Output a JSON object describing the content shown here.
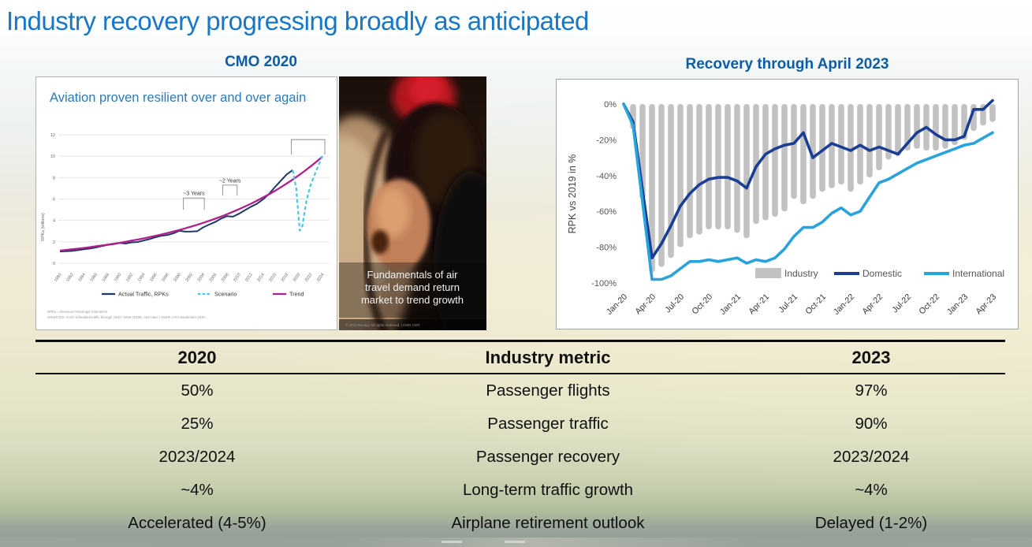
{
  "slide": {
    "title": "Industry recovery progressing broadly as anticipated"
  },
  "left_section": {
    "heading": "CMO 2020",
    "chart_title": "Aviation proven resilient over and over again",
    "footnote_line1": "RPKs = Revenue Passenger Kilometers",
    "footnote_line2": "SOURCES: ICAO scheduled traffic through 1993 / 2006-2019E, HDI rates / 2020F, IATA September 2020"
  },
  "photo": {
    "caption_lines": [
      "Fundamentals of air",
      "travel demand return",
      "market to trend growth"
    ],
    "credit": "© 2023 Boeing. All rights reserved.  |  CMO CMT"
  },
  "right_section": {
    "heading": "Recovery through April 2023"
  },
  "table": {
    "headers": [
      "2020",
      "Industry metric",
      "2023"
    ],
    "rows": [
      [
        "50%",
        "Passenger flights",
        "97%"
      ],
      [
        "25%",
        "Passenger traffic",
        "90%"
      ],
      [
        "2023/2024",
        "Passenger recovery",
        "2023/2024"
      ],
      [
        "~4%",
        "Long-term traffic growth",
        "~4%"
      ],
      [
        "Accelerated (4-5%)",
        "Airplane retirement outlook",
        "Delayed (1-2%)"
      ]
    ]
  },
  "colors": {
    "title_blue": "#1877C6",
    "heading_blue": "#0C5DA5",
    "chart_title_blue": "#2B7AB8",
    "actual_traffic": "#1F3864",
    "scenario": "#45C6E8",
    "trend": "#B01F8E",
    "industry_bar": "#C2C2C2",
    "domestic": "#1A3E96",
    "international": "#29A3DC"
  },
  "chart_data": [
    {
      "type": "line",
      "title": "Aviation proven resilient over and over again",
      "xlabel": "",
      "ylabel": "RPKs (trillions)",
      "ylim": [
        0,
        12
      ],
      "yticks": [
        0,
        2,
        4,
        6,
        8,
        10,
        12
      ],
      "xticks": [
        1980,
        1982,
        1984,
        1986,
        1988,
        1990,
        1992,
        1994,
        1996,
        1998,
        2000,
        2002,
        2004,
        2006,
        2008,
        2010,
        2012,
        2014,
        2016,
        2018,
        2020,
        2022,
        2024
      ],
      "grid": true,
      "legend_position": "bottom",
      "series": [
        {
          "name": "Actual Traffic, RPKs",
          "style": "solid",
          "color_key": "actual_traffic",
          "x_start": 1980,
          "x_step": 1,
          "values": [
            1.1,
            1.12,
            1.15,
            1.22,
            1.3,
            1.37,
            1.47,
            1.6,
            1.71,
            1.78,
            1.89,
            1.84,
            1.95,
            1.98,
            2.12,
            2.25,
            2.43,
            2.57,
            2.63,
            2.79,
            3.03,
            2.95,
            2.96,
            2.99,
            3.35,
            3.61,
            3.85,
            4.17,
            4.4,
            4.35,
            4.62,
            4.95,
            5.28,
            5.55,
            5.95,
            6.45,
            7.1,
            7.7,
            8.3,
            8.7
          ]
        },
        {
          "name": "Trend",
          "style": "solid",
          "color_key": "trend",
          "x_start": 1980,
          "x_step": 1,
          "values": [
            1.18,
            1.24,
            1.3,
            1.36,
            1.43,
            1.5,
            1.58,
            1.66,
            1.74,
            1.82,
            1.91,
            2.01,
            2.11,
            2.21,
            2.32,
            2.44,
            2.56,
            2.69,
            2.82,
            2.96,
            3.11,
            3.26,
            3.42,
            3.59,
            3.77,
            3.96,
            4.16,
            4.36,
            4.58,
            4.81,
            5.05,
            5.3,
            5.56,
            5.84,
            6.13,
            6.43,
            6.75,
            7.09,
            7.44,
            7.81,
            8.2,
            8.61,
            9.04,
            9.49,
            9.96
          ]
        },
        {
          "name": "Scenario",
          "style": "dashed",
          "color_key": "scenario",
          "x": [
            2019,
            2019.6,
            2020.2,
            2020.6,
            2021.3,
            2022,
            2023,
            2024
          ],
          "values": [
            8.7,
            7.0,
            3.05,
            3.4,
            5.8,
            7.3,
            8.7,
            10.05
          ]
        }
      ],
      "annotations": [
        {
          "label": "~3 Years",
          "x1": 2000.7,
          "x2": 2004.2,
          "y": 6.1,
          "leg": 1.1
        },
        {
          "label": "~2 Years",
          "x1": 2007.3,
          "x2": 2009.7,
          "y": 7.3,
          "leg": 1.0
        },
        {
          "label": "",
          "x1": 2018.8,
          "x2": 2024.4,
          "y": 11.55,
          "leg": 1.4
        }
      ],
      "legend": [
        "Actual Traffic, RPKs",
        "Scenario",
        "Trend"
      ]
    },
    {
      "type": "bar",
      "title": "Recovery through April 2023",
      "xlabel": "",
      "ylabel": "RPK vs 2019 in %",
      "ylim": [
        -100,
        0
      ],
      "yticks": [
        {
          "v": 0,
          "label": "0%"
        },
        {
          "v": -20,
          "label": "-20%"
        },
        {
          "v": -40,
          "label": "-40%"
        },
        {
          "v": -60,
          "label": "-60%"
        },
        {
          "v": -80,
          "label": "-80%"
        },
        {
          "v": -100,
          "label": "-100%"
        }
      ],
      "grid": false,
      "legend_position": "inside-bottom-right",
      "categories": [
        "Jan-20",
        "Feb-20",
        "Mar-20",
        "Apr-20",
        "May-20",
        "Jun-20",
        "Jul-20",
        "Aug-20",
        "Sep-20",
        "Oct-20",
        "Nov-20",
        "Dec-20",
        "Jan-21",
        "Feb-21",
        "Mar-21",
        "Apr-21",
        "May-21",
        "Jun-21",
        "Jul-21",
        "Aug-21",
        "Sep-21",
        "Oct-21",
        "Nov-21",
        "Dec-21",
        "Jan-22",
        "Feb-22",
        "Mar-22",
        "Apr-22",
        "May-22",
        "Jun-22",
        "Jul-22",
        "Aug-22",
        "Sep-22",
        "Oct-22",
        "Nov-22",
        "Dec-22",
        "Jan-23",
        "Feb-23",
        "Mar-23",
        "Apr-23"
      ],
      "xtick_every": 3,
      "bar_series": {
        "name": "Industry",
        "color_key": "industry_bar",
        "values": [
          0,
          -14,
          -53,
          -94,
          -91,
          -86,
          -80,
          -75,
          -73,
          -70,
          -70,
          -70,
          -72,
          -75,
          -67,
          -65,
          -63,
          -60,
          -53,
          -56,
          -53,
          -49,
          -47,
          -45,
          -49,
          -45,
          -41,
          -37,
          -31,
          -29,
          -26,
          -25,
          -26,
          -26,
          -25,
          -23,
          -20,
          -15,
          -12,
          -10
        ]
      },
      "line_series": [
        {
          "name": "Domestic",
          "color_key": "domestic",
          "values": [
            0,
            -10,
            -48,
            -86,
            -78,
            -68,
            -57,
            -50,
            -45,
            -42,
            -41,
            -41,
            -43,
            -47,
            -35,
            -28,
            -25,
            -23,
            -22,
            -16,
            -30,
            -26,
            -22,
            -24,
            -26,
            -23,
            -26,
            -24,
            -26,
            -28,
            -22,
            -16,
            -13,
            -17,
            -20,
            -20,
            -18,
            -3,
            -3,
            2
          ]
        },
        {
          "name": "International",
          "color_key": "international",
          "values": [
            0,
            -12,
            -55,
            -98,
            -98,
            -96,
            -92,
            -88,
            -88,
            -87,
            -88,
            -87,
            -86,
            -89,
            -87,
            -88,
            -86,
            -81,
            -74,
            -69,
            -69,
            -66,
            -61,
            -58,
            -62,
            -60,
            -52,
            -44,
            -42,
            -39,
            -36,
            -33,
            -31,
            -29,
            -27,
            -25,
            -23,
            -22,
            -19,
            -16
          ]
        }
      ],
      "legend": [
        "Industry",
        "Domestic",
        "International"
      ]
    }
  ]
}
